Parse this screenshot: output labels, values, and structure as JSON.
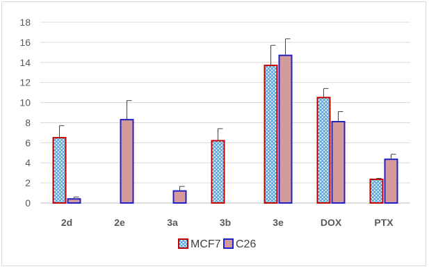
{
  "chart_data": {
    "type": "bar",
    "title": "",
    "xlabel": "",
    "ylabel": "",
    "categories": [
      "2d",
      "2e",
      "3a",
      "3b",
      "3e",
      "DOX",
      "PTX"
    ],
    "ylim": [
      0,
      18
    ],
    "yticks": [
      0,
      2,
      4,
      6,
      8,
      10,
      12,
      14,
      16,
      18
    ],
    "grid": "horizontal",
    "legend_position": "bottom",
    "series": [
      {
        "name": "MCF7",
        "fill": "#5fa8d8",
        "pattern": "dots",
        "border": "#c00000",
        "values": [
          6.5,
          null,
          null,
          6.2,
          13.7,
          10.5,
          2.35
        ],
        "errors": [
          1.2,
          null,
          null,
          1.2,
          2.0,
          0.9,
          0.1
        ]
      },
      {
        "name": "C26",
        "fill": "#d49a9a",
        "border": "#1f1fcc",
        "values": [
          0.4,
          8.3,
          1.2,
          null,
          14.7,
          8.1,
          4.35
        ],
        "errors": [
          0.2,
          1.9,
          0.45,
          null,
          1.65,
          1.0,
          0.5
        ]
      }
    ]
  }
}
